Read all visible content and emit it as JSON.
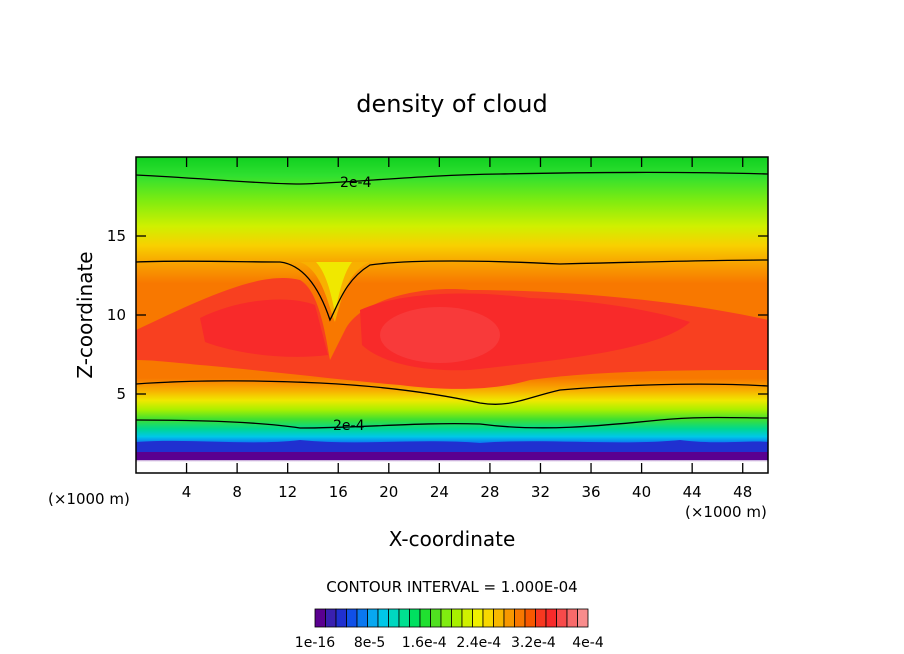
{
  "chart_data": {
    "type": "heatmap",
    "title": "density of cloud",
    "xlabel": "X-coordinate",
    "ylabel": "Z-coordinate",
    "x_unit_left": "(×1000 m)",
    "x_unit_right": "(×1000 m)",
    "xlim": [
      0,
      50
    ],
    "ylim": [
      0,
      20
    ],
    "x_ticks": [
      4,
      8,
      12,
      16,
      20,
      24,
      28,
      32,
      36,
      40,
      44,
      48
    ],
    "y_ticks": [
      5,
      10,
      15
    ],
    "contour_interval_text": "CONTOUR INTERVAL = 1.000E-04",
    "contour_labels": [
      {
        "text": "2e-4",
        "x": 17.2,
        "y": 18.6
      },
      {
        "text": "2e-4",
        "x": 17.2,
        "y": 3.1
      }
    ],
    "colorbar": {
      "colors": [
        "#5a0090",
        "#3a20b0",
        "#2030d0",
        "#1050e8",
        "#0a78f0",
        "#08a8f0",
        "#00c8e8",
        "#00d8c0",
        "#00e090",
        "#00e060",
        "#20e030",
        "#50e020",
        "#80ec10",
        "#a8f000",
        "#d0f000",
        "#f0f000",
        "#f8d800",
        "#f8b800",
        "#f89800",
        "#f87800",
        "#f85800",
        "#f83820",
        "#f82a2a",
        "#f84a4a",
        "#f86a6a",
        "#f88c8c"
      ],
      "tick_labels": [
        "1e-16",
        "8e-5",
        "1.6e-4",
        "2.4e-4",
        "3.2e-4",
        "4e-4"
      ]
    },
    "field": {
      "ground_band": "purple/blue at z 0.5-2",
      "bands_low_to_high": [
        "purple",
        "blue",
        "cyan",
        "green",
        "yellow",
        "orange",
        "red"
      ],
      "core": "red core between z 5 and 13, peak near x 22-28, z 8-9",
      "dip": "narrow trough of lower values at x 15.5 reaching down to z 10"
    }
  }
}
